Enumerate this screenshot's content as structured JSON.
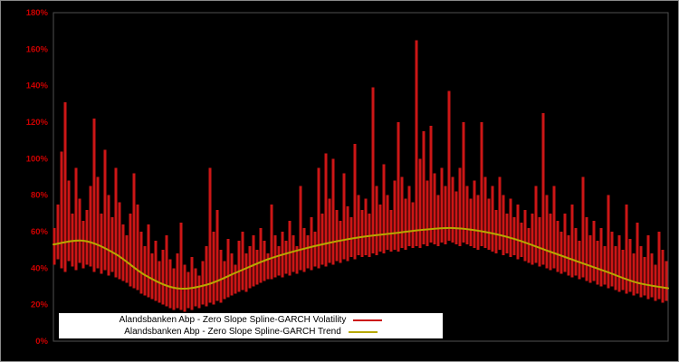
{
  "chart": {
    "background_color": "#000000",
    "plot_border_color": "#4f4f4f",
    "axis_label_color": "#cc0000",
    "legend_background": "#ffffff",
    "y_ticks": [
      {
        "label": "0%",
        "value": 0
      },
      {
        "label": "20%",
        "value": 20
      },
      {
        "label": "40%",
        "value": 40
      },
      {
        "label": "60%",
        "value": 60
      },
      {
        "label": "80%",
        "value": 80
      },
      {
        "label": "100%",
        "value": 100
      },
      {
        "label": "120%",
        "value": 120
      },
      {
        "label": "140%",
        "value": 140
      },
      {
        "label": "160%",
        "value": 160
      },
      {
        "label": "180%",
        "value": 180
      }
    ]
  },
  "chart_data": {
    "type": "line",
    "title": "",
    "xlabel": "",
    "ylabel": "",
    "ylim": [
      0,
      180
    ],
    "y_unit": "%",
    "grid": false,
    "legend_position": "bottom-center",
    "series": [
      {
        "name": "Alandsbanken Abp - Zero Slope Spline-GARCH Volatility",
        "color": "#cc1616",
        "style": "spiky-range",
        "high": [
          62,
          75,
          104,
          131,
          88,
          70,
          95,
          78,
          66,
          72,
          85,
          122,
          90,
          70,
          105,
          80,
          68,
          95,
          76,
          64,
          58,
          70,
          92,
          75,
          60,
          52,
          64,
          48,
          55,
          44,
          50,
          58,
          45,
          40,
          48,
          65,
          42,
          38,
          46,
          40,
          36,
          44,
          52,
          95,
          60,
          72,
          50,
          44,
          56,
          48,
          42,
          55,
          60,
          48,
          52,
          58,
          50,
          62,
          55,
          48,
          75,
          58,
          52,
          60,
          55,
          66,
          58,
          52,
          85,
          62,
          58,
          68,
          60,
          95,
          70,
          103,
          78,
          100,
          72,
          66,
          92,
          74,
          68,
          108,
          80,
          72,
          78,
          70,
          139,
          85,
          75,
          97,
          80,
          72,
          88,
          120,
          90,
          78,
          85,
          76,
          165,
          100,
          115,
          88,
          118,
          92,
          80,
          95,
          85,
          137,
          90,
          82,
          95,
          120,
          85,
          78,
          88,
          80,
          120,
          90,
          78,
          85,
          72,
          90,
          80,
          70,
          78,
          68,
          75,
          65,
          72,
          62,
          70,
          85,
          68,
          125,
          80,
          70,
          85,
          66,
          60,
          70,
          58,
          75,
          62,
          55,
          90,
          68,
          58,
          66,
          55,
          62,
          52,
          80,
          60,
          52,
          58,
          50,
          75,
          56,
          48,
          65,
          52,
          46,
          58,
          48,
          42,
          60,
          50,
          44
        ],
        "low": [
          42,
          45,
          40,
          38,
          44,
          41,
          39,
          43,
          40,
          42,
          41,
          38,
          40,
          37,
          39,
          36,
          38,
          35,
          34,
          33,
          32,
          30,
          29,
          28,
          26,
          25,
          24,
          23,
          22,
          21,
          20,
          19,
          18,
          17,
          18,
          17,
          16,
          18,
          17,
          19,
          18,
          20,
          19,
          21,
          20,
          22,
          21,
          23,
          24,
          25,
          26,
          27,
          28,
          27,
          29,
          30,
          31,
          32,
          33,
          34,
          34,
          35,
          36,
          35,
          37,
          36,
          38,
          37,
          39,
          38,
          40,
          39,
          41,
          40,
          42,
          41,
          43,
          42,
          44,
          43,
          45,
          44,
          46,
          45,
          47,
          46,
          47,
          46,
          48,
          47,
          49,
          48,
          50,
          49,
          50,
          49,
          51,
          50,
          52,
          51,
          52,
          51,
          53,
          52,
          54,
          53,
          52,
          54,
          53,
          55,
          54,
          53,
          52,
          54,
          53,
          52,
          51,
          50,
          52,
          51,
          50,
          49,
          48,
          50,
          47,
          48,
          46,
          47,
          45,
          46,
          44,
          43,
          42,
          43,
          41,
          42,
          40,
          39,
          40,
          38,
          37,
          38,
          36,
          35,
          36,
          34,
          35,
          33,
          32,
          33,
          31,
          30,
          31,
          29,
          30,
          28,
          27,
          28,
          26,
          27,
          25,
          26,
          24,
          25,
          23,
          24,
          22,
          23,
          21,
          22
        ]
      },
      {
        "name": "Alandsbanken Abp - Zero Slope Spline-GARCH Trend",
        "color": "#b6a800",
        "style": "smooth-line",
        "values": [
          53,
          55,
          48,
          36,
          29,
          31,
          38,
          45,
          50,
          54,
          57,
          59,
          61,
          62,
          60,
          56,
          50,
          44,
          38,
          32,
          29
        ]
      }
    ]
  }
}
